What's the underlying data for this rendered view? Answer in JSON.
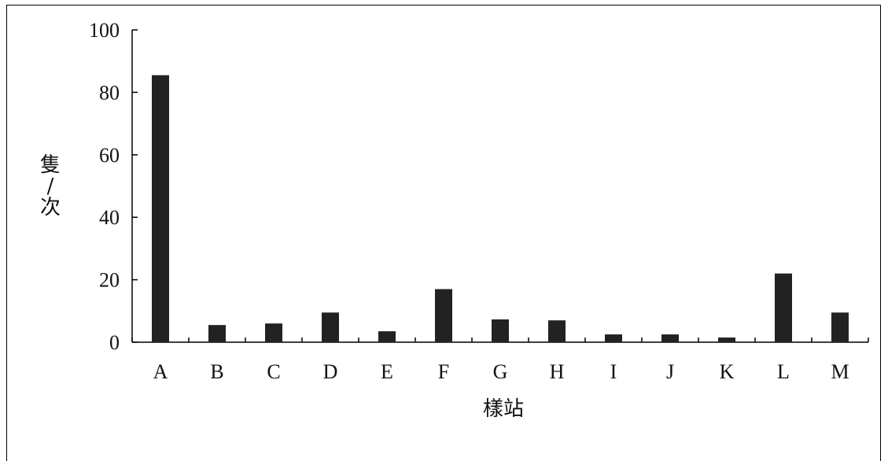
{
  "chart_data": {
    "type": "bar",
    "categories": [
      "A",
      "B",
      "C",
      "D",
      "E",
      "F",
      "G",
      "H",
      "I",
      "J",
      "K",
      "L",
      "M"
    ],
    "values": [
      85.5,
      5.5,
      6,
      9.5,
      3.5,
      17,
      7.3,
      7,
      2.5,
      2.5,
      1.5,
      22,
      9.5
    ],
    "xlabel": "樣站",
    "ylabel": "隻/次",
    "ylabel_parts": [
      "隻",
      "/",
      "次"
    ],
    "ylim": [
      0,
      100
    ],
    "yticks": [
      0,
      20,
      40,
      60,
      80,
      100
    ],
    "grid": false,
    "bar_color": "#222222"
  }
}
